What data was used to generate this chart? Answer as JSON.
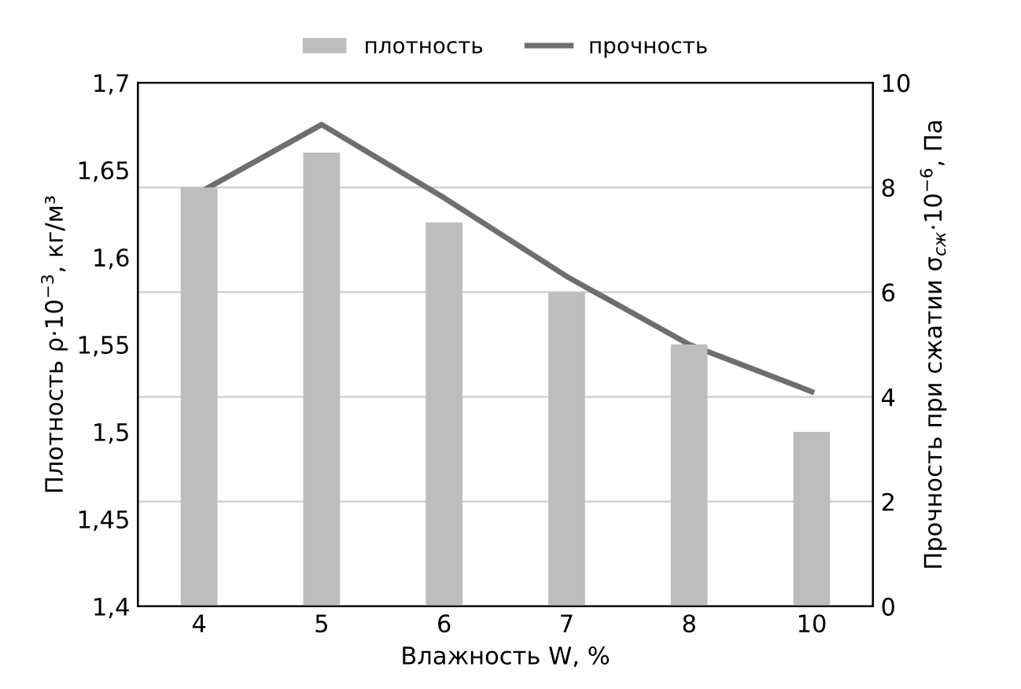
{
  "chart_data": {
    "type": "bar",
    "xlabel": "Влажность W, %",
    "ylabel": "Плотность ρ·10$^{−3}$, кг/м³",
    "y2label": "Прочность при сжатии σ$_{сж}$·10$^{−6}$, Па",
    "categories": [
      "4",
      "5",
      "6",
      "7",
      "8",
      "10"
    ],
    "series": [
      {
        "name": "плотность",
        "color": "#bdbdbd",
        "values": [
          1.64,
          1.66,
          1.62,
          1.58,
          1.55,
          1.5
        ]
      },
      {
        "name": "прочность",
        "type": "line",
        "axis": "y2",
        "color": "#6e6e6e",
        "values": [
          7.9,
          9.2,
          7.8,
          6.3,
          5.0,
          4.1
        ]
      }
    ],
    "ylim": [
      1.4,
      1.7
    ],
    "yticks": [
      {
        "value": 1.4,
        "label": "1,4"
      },
      {
        "value": 1.45,
        "label": "1,45"
      },
      {
        "value": 1.5,
        "label": "1,5"
      },
      {
        "value": 1.55,
        "label": "1,55"
      },
      {
        "value": 1.6,
        "label": "1,6"
      },
      {
        "value": 1.65,
        "label": "1,65"
      },
      {
        "value": 1.7,
        "label": "1,7"
      }
    ],
    "y2lim": [
      0,
      10
    ],
    "y2ticks": [
      0,
      2,
      4,
      6,
      8,
      10
    ],
    "grid": "y2",
    "legend": "top",
    "marker": "none",
    "line_style": "solid"
  }
}
